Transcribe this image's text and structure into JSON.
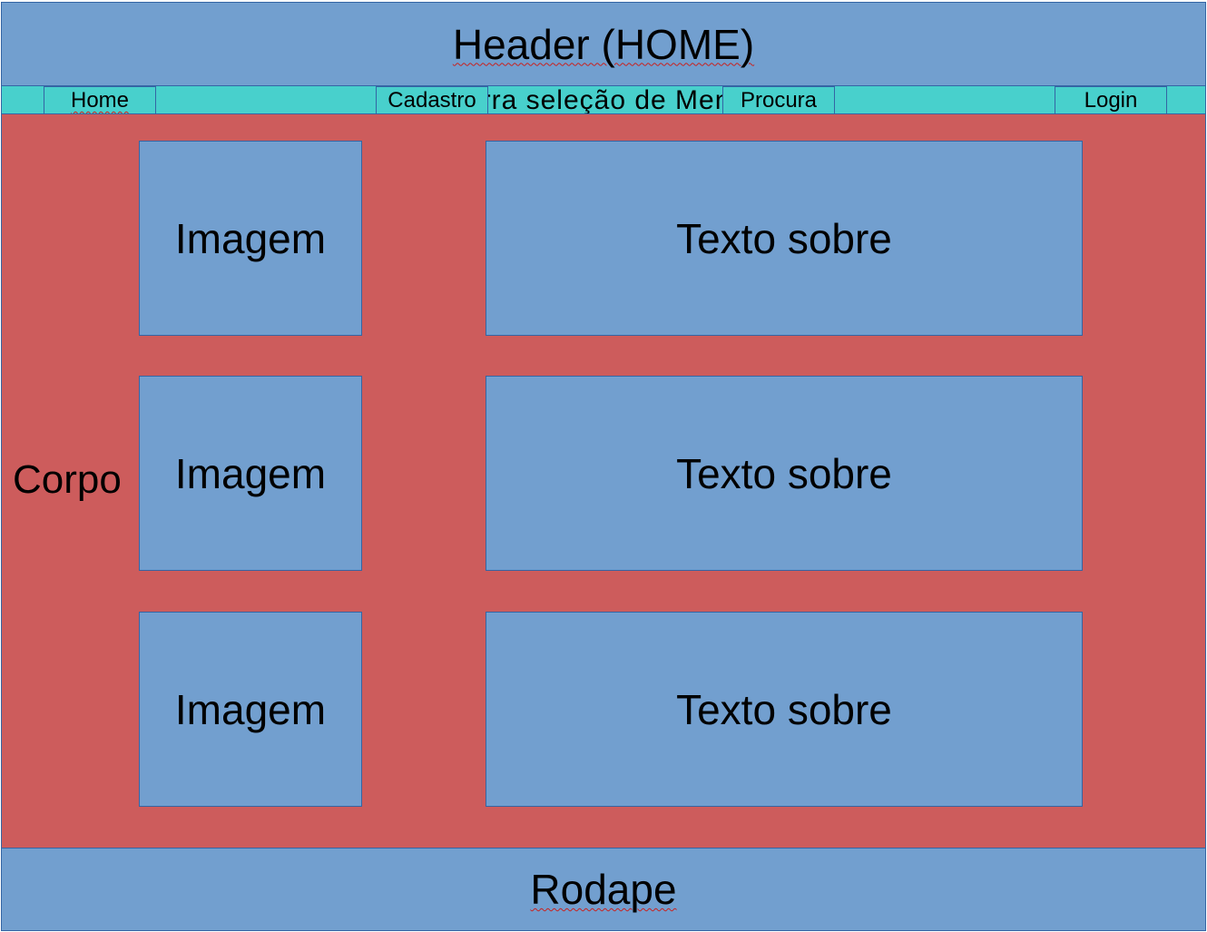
{
  "header": {
    "title": "Header (HOME)"
  },
  "nav": {
    "background_text": "Barra seleção de Menus",
    "items": [
      "Home",
      "Cadastro",
      "Procura",
      "Login"
    ]
  },
  "body": {
    "label": "Corpo",
    "rows": [
      {
        "image": "Imagem",
        "text": "Texto sobre"
      },
      {
        "image": "Imagem",
        "text": "Texto sobre"
      },
      {
        "image": "Imagem",
        "text": "Texto sobre"
      }
    ]
  },
  "footer": {
    "title": "Rodape"
  },
  "colors": {
    "blocks": "#729fcf",
    "nav_bar": "#48d0cc",
    "body": "#cd5c5c",
    "border": "#3465a4"
  }
}
